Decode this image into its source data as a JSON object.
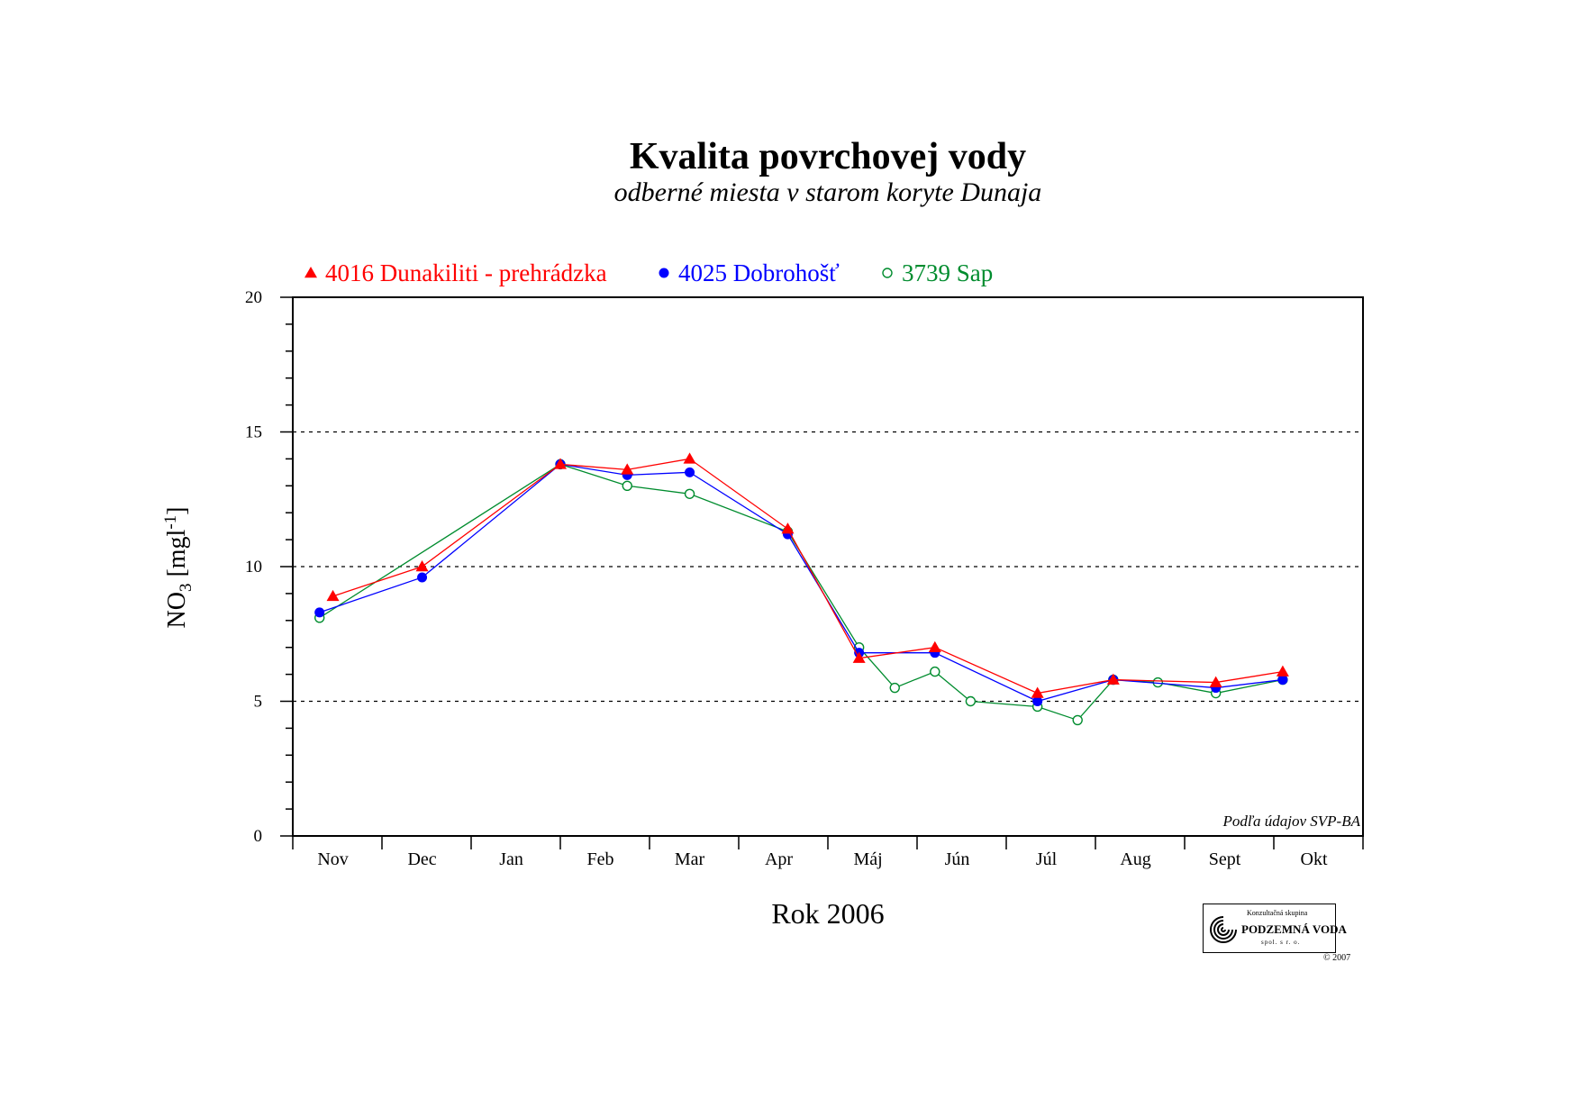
{
  "chart_data": {
    "type": "line",
    "title": "Kvalita povrchovej vody",
    "subtitle": "odberné miesta v starom koryte Dunaja",
    "xlabel": "Rok 2006",
    "ylabel": "NO3 [mg l-1]",
    "ylabel_parts": {
      "base": "NO",
      "sub": "3",
      "bracket_open": " [mgl",
      "sup": "-1",
      "bracket_close": "]"
    },
    "categories": [
      "Nov",
      "Dec",
      "Jan",
      "Feb",
      "Mar",
      "Apr",
      "Máj",
      "Jún",
      "Júl",
      "Aug",
      "Sept",
      "Okt"
    ],
    "x_range": [
      0,
      12
    ],
    "ylim": [
      0,
      20
    ],
    "y_ticks": [
      "0",
      "5",
      "10",
      "15",
      "20"
    ],
    "grid": "horizontal dashed at 5, 10, 15",
    "legend_position": "top-left",
    "source_note": "Podľa údajov SVP-BA",
    "series": [
      {
        "name": "4016 Dunakiliti - prehrádzka",
        "color": "#ff0000",
        "marker": "filled-triangle",
        "points": [
          [
            0.45,
            8.9
          ],
          [
            1.45,
            10.0
          ],
          [
            3.0,
            13.8
          ],
          [
            3.75,
            13.6
          ],
          [
            4.45,
            14.0
          ],
          [
            5.55,
            11.4
          ],
          [
            6.35,
            6.6
          ],
          [
            7.2,
            7.0
          ],
          [
            8.35,
            5.3
          ],
          [
            9.2,
            5.8
          ],
          [
            10.35,
            5.7
          ],
          [
            11.1,
            6.1
          ]
        ]
      },
      {
        "name": "4025 Dobrohošť",
        "color": "#0000ff",
        "marker": "filled-circle",
        "points": [
          [
            0.3,
            8.3
          ],
          [
            1.45,
            9.6
          ],
          [
            3.0,
            13.8
          ],
          [
            3.75,
            13.4
          ],
          [
            4.45,
            13.5
          ],
          [
            5.55,
            11.2
          ],
          [
            6.35,
            6.8
          ],
          [
            7.2,
            6.8
          ],
          [
            8.35,
            5.0
          ],
          [
            9.2,
            5.8
          ],
          [
            10.35,
            5.5
          ],
          [
            11.1,
            5.8
          ]
        ]
      },
      {
        "name": "3739 Sap",
        "color": "#008c2e",
        "marker": "open-circle",
        "points": [
          [
            0.3,
            8.1
          ],
          [
            3.0,
            13.8
          ],
          [
            3.75,
            13.0
          ],
          [
            4.45,
            12.7
          ],
          [
            5.55,
            11.3
          ],
          [
            6.35,
            7.0
          ],
          [
            6.75,
            5.5
          ],
          [
            7.2,
            6.1
          ],
          [
            7.6,
            5.0
          ],
          [
            8.35,
            4.8
          ],
          [
            8.8,
            4.3
          ],
          [
            9.2,
            5.8
          ],
          [
            9.7,
            5.7
          ],
          [
            10.35,
            5.3
          ],
          [
            11.1,
            5.8
          ]
        ]
      }
    ]
  },
  "logo": {
    "top_text": "Konzultačná skupina",
    "name": "PODZEMNÁ VODA",
    "bottom_text": "spol. s r. o.",
    "copyright": "© 2007",
    "icon": "spiral-logo-icon"
  },
  "colors": {
    "axis": "#000000",
    "grid": "#000000",
    "background": "#ffffff"
  }
}
